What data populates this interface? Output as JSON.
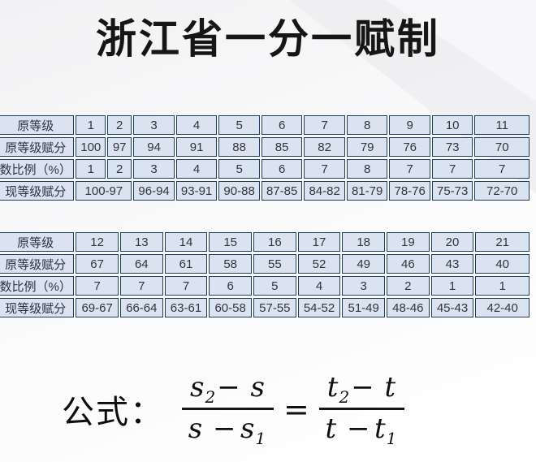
{
  "title": "浙江省一分一赋制",
  "colors": {
    "cell_background": "#dbe3f0",
    "cell_border": "#1e3c5f",
    "cell_text": "#31343f",
    "title_text": "#161616",
    "page_background": "#fafafb"
  },
  "tables": [
    {
      "name": "grade-table-1-11",
      "rows": [
        {
          "label": "原等级",
          "cells": [
            "1",
            "2",
            "3",
            "4",
            "5",
            "6",
            "7",
            "8",
            "9",
            "10",
            "11"
          ]
        },
        {
          "label": "原等级赋分",
          "cells": [
            "100",
            "97",
            "94",
            "91",
            "88",
            "85",
            "82",
            "79",
            "76",
            "73",
            "70"
          ]
        },
        {
          "label": "数比例（%）",
          "cells": [
            "1",
            "2",
            "3",
            "4",
            "5",
            "6",
            "7",
            "8",
            "7",
            "7",
            "7"
          ]
        },
        {
          "label": "现等级赋分",
          "cells": [
            {
              "text": "100-97",
              "colspan": 2
            },
            "96-94",
            "93-91",
            "90-88",
            "87-85",
            "84-82",
            "81-79",
            "78-76",
            "75-73",
            "72-70"
          ]
        }
      ]
    },
    {
      "name": "grade-table-12-21",
      "rows": [
        {
          "label": "原等级",
          "cells": [
            "12",
            "13",
            "14",
            "15",
            "16",
            "17",
            "18",
            "19",
            "20",
            "21"
          ]
        },
        {
          "label": "原等级赋分",
          "cells": [
            "67",
            "64",
            "61",
            "58",
            "55",
            "52",
            "49",
            "46",
            "43",
            "40"
          ]
        },
        {
          "label": "数比例（%）",
          "cells": [
            "7",
            "7",
            "7",
            "6",
            "5",
            "4",
            "3",
            "2",
            "1",
            "1"
          ]
        },
        {
          "label": "现等级赋分",
          "cells": [
            "69-67",
            "66-64",
            "63-61",
            "60-58",
            "57-55",
            "54-52",
            "51-49",
            "48-46",
            "45-43",
            "42-40"
          ]
        }
      ]
    }
  ],
  "formula": {
    "label": "公式：",
    "eq": "=",
    "lhs": {
      "num_base": "s",
      "num_sub": "2",
      "num_rest": "− s",
      "den_lead": "s −",
      "den_base": "s",
      "den_sub": "1"
    },
    "rhs": {
      "num_base": "t",
      "num_sub": "2",
      "num_rest": "− t",
      "den_lead": "t −",
      "den_base": "t",
      "den_sub": "1"
    }
  }
}
